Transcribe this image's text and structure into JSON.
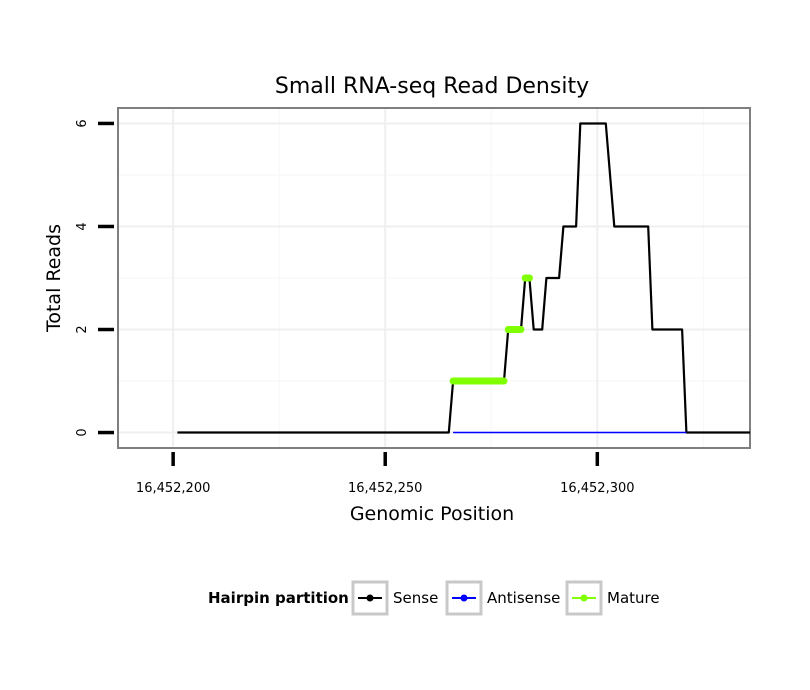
{
  "chart_data": {
    "type": "line",
    "title": "Small RNA-seq Read Density",
    "xlabel": "Genomic Position",
    "ylabel": "Total Reads",
    "xlim": [
      16452187,
      16452336
    ],
    "ylim": [
      -0.3,
      6.3
    ],
    "x_ticks": [
      16452200,
      16452250,
      16452300
    ],
    "x_tick_labels": [
      "16,452,200",
      "16,452,250",
      "16,452,300"
    ],
    "y_ticks": [
      0,
      2,
      4,
      6
    ],
    "y_tick_labels": [
      "0",
      "2",
      "4",
      "6"
    ],
    "grid": true,
    "legend": {
      "title": "Hairpin partition",
      "position": "bottom",
      "entries": [
        {
          "label": "Sense",
          "color": "#000000"
        },
        {
          "label": "Antisense",
          "color": "#0000ff"
        },
        {
          "label": "Mature",
          "color": "#7fff00"
        }
      ]
    },
    "series": [
      {
        "name": "Sense",
        "color": "#000000",
        "x": [
          16452201,
          16452265,
          16452266,
          16452278,
          16452279,
          16452282,
          16452283,
          16452284,
          16452285,
          16452287,
          16452288,
          16452291,
          16452292,
          16452295,
          16452296,
          16452302,
          16452304,
          16452312,
          16452313,
          16452320,
          16452321,
          16452336
        ],
        "y": [
          0,
          0,
          1,
          1,
          2,
          2,
          3,
          3,
          2,
          2,
          3,
          3,
          4,
          4,
          6,
          6,
          4,
          4,
          2,
          2,
          0,
          0
        ]
      },
      {
        "name": "Antisense",
        "color": "#0000ff",
        "x": [
          16452266,
          16452321
        ],
        "y": [
          0,
          0
        ]
      },
      {
        "name": "Mature",
        "color": "#7fff00",
        "segments": [
          {
            "x": [
              16452266,
              16452278
            ],
            "y": 1
          },
          {
            "x": [
              16452279,
              16452282
            ],
            "y": 2
          },
          {
            "x": [
              16452283,
              16452284
            ],
            "y": 3
          }
        ]
      }
    ]
  }
}
